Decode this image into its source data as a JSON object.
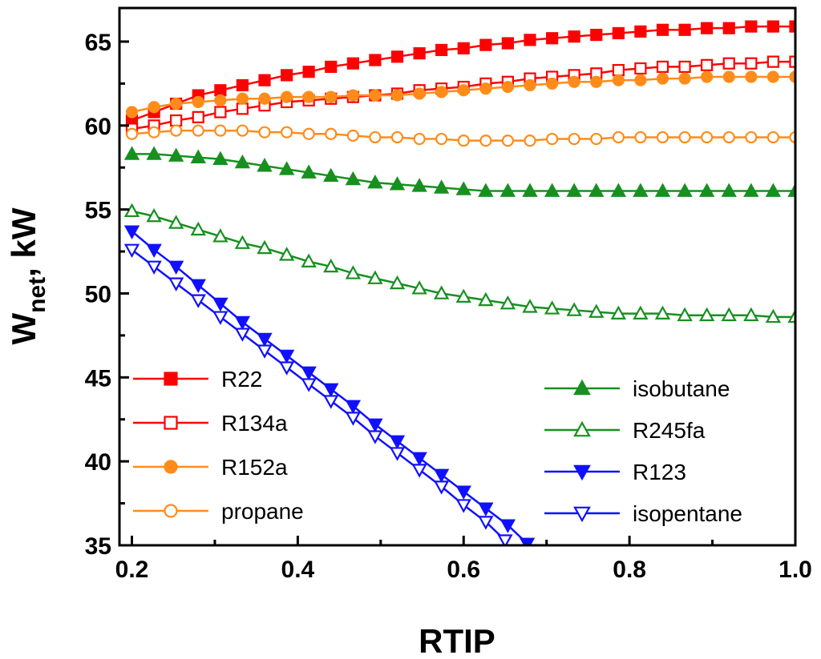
{
  "chart_data": {
    "type": "line",
    "title": "",
    "xlabel": "RTIP",
    "ylabel": "W",
    "ylabel_sub": "net",
    "ylabel_suffix": ", kW",
    "xlim": [
      0.185,
      1.0
    ],
    "ylim": [
      35,
      67
    ],
    "xticks": [
      0.2,
      0.4,
      0.6,
      0.8,
      1.0
    ],
    "xtick_labels": [
      "0.2",
      "0.4",
      "0.6",
      "0.8",
      "1.0"
    ],
    "yticks": [
      35,
      40,
      45,
      50,
      55,
      60,
      65
    ],
    "ytick_labels": [
      "35",
      "40",
      "45",
      "50",
      "55",
      "60",
      "65"
    ],
    "grid": false,
    "legend": [
      {
        "placement": "bottom-left",
        "entries": [
          "R22",
          "R134a",
          "R152a",
          "propane"
        ]
      },
      {
        "placement": "bottom-right",
        "entries": [
          "isobutane",
          "R245fa",
          "R123",
          "isopentane"
        ]
      }
    ],
    "series": [
      {
        "name": "R22",
        "color": "#ff0000",
        "marker": "square",
        "filled": true,
        "x": [
          0.2,
          0.2267,
          0.2533,
          0.28,
          0.3067,
          0.3333,
          0.36,
          0.3867,
          0.4133,
          0.44,
          0.4667,
          0.4933,
          0.52,
          0.5467,
          0.5733,
          0.6,
          0.6267,
          0.6533,
          0.68,
          0.7067,
          0.7333,
          0.76,
          0.7867,
          0.8133,
          0.84,
          0.8667,
          0.8933,
          0.92,
          0.9467,
          0.9733,
          1.0
        ],
        "y": [
          60.3,
          60.8,
          61.3,
          61.8,
          62.1,
          62.4,
          62.7,
          63.0,
          63.2,
          63.5,
          63.7,
          63.9,
          64.1,
          64.3,
          64.5,
          64.6,
          64.8,
          64.9,
          65.1,
          65.2,
          65.3,
          65.4,
          65.5,
          65.6,
          65.7,
          65.7,
          65.8,
          65.8,
          65.9,
          65.9,
          65.9
        ]
      },
      {
        "name": "R134a",
        "color": "#ff0000",
        "marker": "square",
        "filled": false,
        "x": [
          0.2,
          0.2267,
          0.2533,
          0.28,
          0.3067,
          0.3333,
          0.36,
          0.3867,
          0.4133,
          0.44,
          0.4667,
          0.4933,
          0.52,
          0.5467,
          0.5733,
          0.6,
          0.6267,
          0.6533,
          0.68,
          0.7067,
          0.7333,
          0.76,
          0.7867,
          0.8133,
          0.84,
          0.8667,
          0.8933,
          0.92,
          0.9467,
          0.9733,
          1.0
        ],
        "y": [
          59.8,
          60.0,
          60.3,
          60.5,
          60.8,
          61.0,
          61.2,
          61.4,
          61.5,
          61.6,
          61.7,
          61.8,
          61.9,
          62.1,
          62.2,
          62.3,
          62.5,
          62.6,
          62.8,
          62.9,
          63.0,
          63.1,
          63.3,
          63.4,
          63.5,
          63.5,
          63.6,
          63.7,
          63.7,
          63.8,
          63.8
        ]
      },
      {
        "name": "R152a",
        "color": "#ff8c1a",
        "marker": "circle",
        "filled": true,
        "x": [
          0.2,
          0.2267,
          0.2533,
          0.28,
          0.3067,
          0.3333,
          0.36,
          0.3867,
          0.4133,
          0.44,
          0.4667,
          0.4933,
          0.52,
          0.5467,
          0.5733,
          0.6,
          0.6267,
          0.6533,
          0.68,
          0.7067,
          0.7333,
          0.76,
          0.7867,
          0.8133,
          0.84,
          0.8667,
          0.8933,
          0.92,
          0.9467,
          0.9733,
          1.0
        ],
        "y": [
          60.8,
          61.1,
          61.3,
          61.4,
          61.5,
          61.6,
          61.6,
          61.7,
          61.7,
          61.7,
          61.8,
          61.8,
          61.8,
          61.9,
          62.0,
          62.1,
          62.2,
          62.3,
          62.4,
          62.5,
          62.6,
          62.6,
          62.7,
          62.7,
          62.8,
          62.8,
          62.9,
          62.9,
          62.9,
          62.9,
          62.9
        ]
      },
      {
        "name": "propane",
        "color": "#ff8c1a",
        "marker": "circle",
        "filled": false,
        "x": [
          0.2,
          0.2267,
          0.2533,
          0.28,
          0.3067,
          0.3333,
          0.36,
          0.3867,
          0.4133,
          0.44,
          0.4667,
          0.4933,
          0.52,
          0.5467,
          0.5733,
          0.6,
          0.6267,
          0.6533,
          0.68,
          0.7067,
          0.7333,
          0.76,
          0.7867,
          0.8133,
          0.84,
          0.8667,
          0.8933,
          0.92,
          0.9467,
          0.9733,
          1.0
        ],
        "y": [
          59.5,
          59.6,
          59.7,
          59.7,
          59.7,
          59.7,
          59.6,
          59.6,
          59.5,
          59.5,
          59.4,
          59.3,
          59.3,
          59.2,
          59.2,
          59.1,
          59.1,
          59.1,
          59.1,
          59.2,
          59.2,
          59.2,
          59.3,
          59.3,
          59.3,
          59.3,
          59.3,
          59.3,
          59.3,
          59.3,
          59.3
        ]
      },
      {
        "name": "isobutane",
        "color": "#17901f",
        "marker": "triangle-up",
        "filled": true,
        "x": [
          0.2,
          0.2267,
          0.2533,
          0.28,
          0.3067,
          0.3333,
          0.36,
          0.3867,
          0.4133,
          0.44,
          0.4667,
          0.4933,
          0.52,
          0.5467,
          0.5733,
          0.6,
          0.6267,
          0.6533,
          0.68,
          0.7067,
          0.7333,
          0.76,
          0.7867,
          0.8133,
          0.84,
          0.8667,
          0.8933,
          0.92,
          0.9467,
          0.9733,
          1.0
        ],
        "y": [
          58.3,
          58.3,
          58.2,
          58.1,
          58.0,
          57.8,
          57.6,
          57.4,
          57.2,
          57.0,
          56.8,
          56.6,
          56.5,
          56.4,
          56.3,
          56.2,
          56.1,
          56.1,
          56.1,
          56.1,
          56.1,
          56.1,
          56.1,
          56.1,
          56.1,
          56.1,
          56.1,
          56.1,
          56.1,
          56.1,
          56.1
        ]
      },
      {
        "name": "R245fa",
        "color": "#17901f",
        "marker": "triangle-up",
        "filled": false,
        "x": [
          0.2,
          0.2267,
          0.2533,
          0.28,
          0.3067,
          0.3333,
          0.36,
          0.3867,
          0.4133,
          0.44,
          0.4667,
          0.4933,
          0.52,
          0.5467,
          0.5733,
          0.6,
          0.6267,
          0.6533,
          0.68,
          0.7067,
          0.7333,
          0.76,
          0.7867,
          0.8133,
          0.84,
          0.8667,
          0.8933,
          0.92,
          0.9467,
          0.9733,
          1.0
        ],
        "y": [
          54.9,
          54.6,
          54.2,
          53.8,
          53.4,
          53.0,
          52.7,
          52.3,
          51.9,
          51.6,
          51.2,
          50.9,
          50.6,
          50.3,
          50.0,
          49.8,
          49.6,
          49.4,
          49.2,
          49.1,
          49.0,
          48.9,
          48.8,
          48.8,
          48.8,
          48.7,
          48.7,
          48.7,
          48.7,
          48.6,
          48.6
        ]
      },
      {
        "name": "R123",
        "color": "#1010ff",
        "marker": "triangle-down",
        "filled": true,
        "x": [
          0.2,
          0.2267,
          0.2533,
          0.28,
          0.3067,
          0.3333,
          0.36,
          0.3867,
          0.4133,
          0.44,
          0.4667,
          0.4933,
          0.52,
          0.5467,
          0.5733,
          0.6,
          0.6267,
          0.6533,
          0.6767
        ],
        "y": [
          53.7,
          52.6,
          51.6,
          50.5,
          49.4,
          48.3,
          47.3,
          46.3,
          45.3,
          44.3,
          43.3,
          42.2,
          41.2,
          40.2,
          39.2,
          38.2,
          37.2,
          36.2,
          35.1
        ]
      },
      {
        "name": "isopentane",
        "color": "#1010ff",
        "marker": "triangle-down",
        "filled": false,
        "x": [
          0.2,
          0.2267,
          0.2533,
          0.28,
          0.3067,
          0.3333,
          0.36,
          0.3867,
          0.4133,
          0.44,
          0.4667,
          0.4933,
          0.52,
          0.5467,
          0.5733,
          0.6,
          0.6267,
          0.65
        ],
        "y": [
          52.6,
          51.6,
          50.6,
          49.6,
          48.6,
          47.6,
          46.6,
          45.6,
          44.6,
          43.6,
          42.6,
          41.5,
          40.5,
          39.5,
          38.5,
          37.4,
          36.4,
          35.3
        ]
      }
    ]
  }
}
